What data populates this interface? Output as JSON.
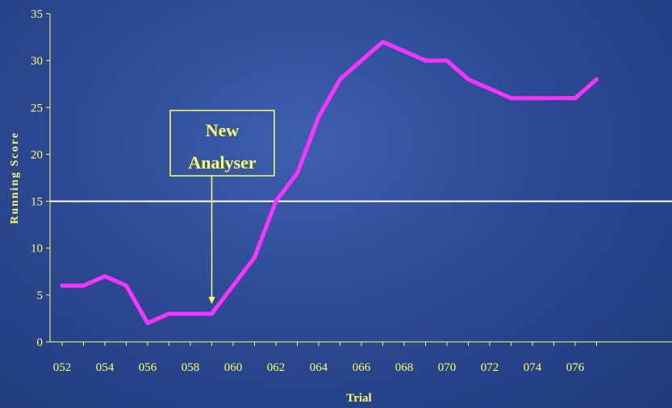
{
  "chart_data": {
    "type": "line",
    "title": "",
    "xlabel": "Trial",
    "ylabel": "Running Score",
    "ylim": [
      0,
      35
    ],
    "yticks": [
      0,
      5,
      10,
      15,
      20,
      25,
      30,
      35
    ],
    "x": [
      "052",
      "053",
      "054",
      "055",
      "056",
      "057",
      "058",
      "059",
      "060",
      "061",
      "062",
      "063",
      "064",
      "065",
      "066",
      "067",
      "068",
      "069",
      "070",
      "071",
      "072",
      "073",
      "074",
      "075",
      "076",
      "077"
    ],
    "xtick_labels": [
      "052",
      "054",
      "056",
      "058",
      "060",
      "062",
      "064",
      "066",
      "068",
      "070",
      "072",
      "074",
      "076"
    ],
    "series": [
      {
        "values": [
          6,
          6,
          7,
          6,
          2,
          3,
          3,
          3,
          6,
          9,
          15,
          18,
          24,
          28,
          30,
          32,
          31,
          30,
          30,
          28,
          27,
          26,
          26,
          26,
          26,
          28
        ]
      }
    ],
    "threshold": 15,
    "annotation": {
      "lines": [
        "New",
        "Analyser"
      ],
      "target_x": "059",
      "target_y": 3
    },
    "colors": {
      "line": "#ff33ff",
      "threshold": "#ffffff",
      "text": "#ffff66",
      "axis": "#ffff66"
    },
    "grid": false,
    "legend": "none"
  }
}
